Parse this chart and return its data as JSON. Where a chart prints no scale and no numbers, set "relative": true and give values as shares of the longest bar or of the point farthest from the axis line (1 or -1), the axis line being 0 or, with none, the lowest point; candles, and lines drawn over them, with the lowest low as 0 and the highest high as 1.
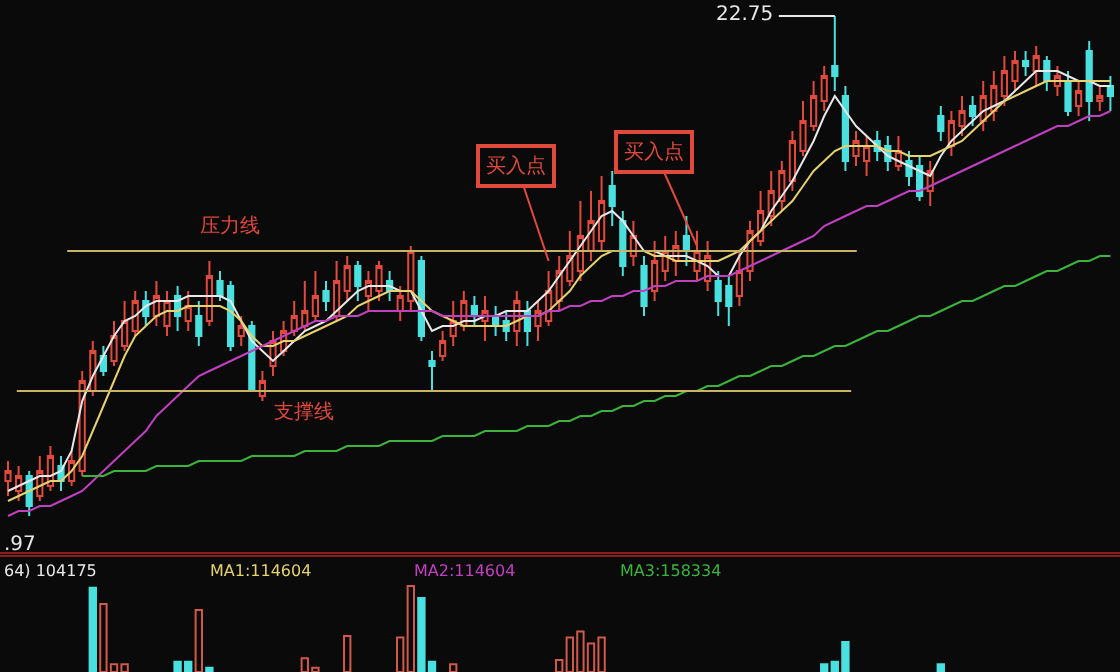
{
  "chart_data": [
    {
      "type": "candlestick",
      "relative": true,
      "categories": [
        null,
        null,
        null,
        null,
        null,
        null,
        null,
        null,
        null,
        null,
        null,
        null,
        null,
        null,
        null,
        null,
        null,
        null,
        null,
        null,
        null,
        null,
        null,
        null,
        null,
        null,
        null,
        null,
        null,
        null,
        null,
        null,
        null,
        null,
        null,
        null,
        null,
        null,
        null,
        null,
        null,
        null,
        null,
        null,
        null,
        null,
        null,
        null,
        null,
        null,
        null,
        null,
        null,
        null,
        null,
        null,
        null,
        null,
        null,
        null,
        null,
        null,
        null,
        null,
        null,
        null,
        null,
        null,
        null,
        null,
        null,
        null,
        null,
        null,
        null,
        null,
        null,
        null,
        null,
        null,
        null,
        null,
        null,
        null,
        null,
        null,
        null,
        null,
        null,
        null,
        null,
        null,
        null,
        null,
        null,
        null,
        null,
        null,
        null,
        null,
        null,
        null,
        null,
        null,
        null
      ],
      "ohlc": [
        [
          0.07,
          0.11,
          0.04,
          0.09
        ],
        [
          0.05,
          0.1,
          0.03,
          0.08
        ],
        [
          0.08,
          0.09,
          0.0,
          0.02
        ],
        [
          0.04,
          0.12,
          0.03,
          0.09
        ],
        [
          0.06,
          0.14,
          0.05,
          0.12
        ],
        [
          0.1,
          0.12,
          0.05,
          0.07
        ],
        [
          0.07,
          0.13,
          0.06,
          0.11
        ],
        [
          0.09,
          0.29,
          0.08,
          0.27
        ],
        [
          0.25,
          0.35,
          0.24,
          0.33
        ],
        [
          0.32,
          0.34,
          0.28,
          0.29
        ],
        [
          0.31,
          0.39,
          0.3,
          0.36
        ],
        [
          0.34,
          0.43,
          0.33,
          0.39
        ],
        [
          0.37,
          0.45,
          0.36,
          0.43
        ],
        [
          0.43,
          0.45,
          0.38,
          0.4
        ],
        [
          0.4,
          0.47,
          0.38,
          0.44
        ],
        [
          0.38,
          0.45,
          0.36,
          0.43
        ],
        [
          0.44,
          0.46,
          0.37,
          0.4
        ],
        [
          0.39,
          0.45,
          0.37,
          0.42
        ],
        [
          0.4,
          0.43,
          0.34,
          0.36
        ],
        [
          0.39,
          0.51,
          0.38,
          0.48
        ],
        [
          0.47,
          0.49,
          0.43,
          0.44
        ],
        [
          0.46,
          0.47,
          0.33,
          0.34
        ],
        [
          0.36,
          0.4,
          0.34,
          0.38
        ],
        [
          0.38,
          0.39,
          0.25,
          0.25
        ],
        [
          0.24,
          0.29,
          0.23,
          0.27
        ],
        [
          0.3,
          0.37,
          0.28,
          0.35
        ],
        [
          0.33,
          0.39,
          0.32,
          0.37
        ],
        [
          0.37,
          0.43,
          0.36,
          0.4
        ],
        [
          0.38,
          0.47,
          0.37,
          0.41
        ],
        [
          0.4,
          0.49,
          0.39,
          0.44
        ],
        [
          0.45,
          0.47,
          0.41,
          0.43
        ],
        [
          0.4,
          0.51,
          0.39,
          0.47
        ],
        [
          0.45,
          0.52,
          0.43,
          0.5
        ],
        [
          0.5,
          0.51,
          0.43,
          0.46
        ],
        [
          0.44,
          0.49,
          0.41,
          0.47
        ],
        [
          0.45,
          0.51,
          0.43,
          0.5
        ],
        [
          0.47,
          0.49,
          0.43,
          0.45
        ],
        [
          0.41,
          0.46,
          0.39,
          0.44
        ],
        [
          0.43,
          0.54,
          0.41,
          0.53
        ],
        [
          0.51,
          0.52,
          0.35,
          0.36
        ],
        [
          0.31,
          0.33,
          0.25,
          0.3
        ],
        [
          0.32,
          0.37,
          0.31,
          0.35
        ],
        [
          0.36,
          0.43,
          0.34,
          0.39
        ],
        [
          0.38,
          0.45,
          0.37,
          0.43
        ],
        [
          0.42,
          0.44,
          0.38,
          0.4
        ],
        [
          0.39,
          0.44,
          0.35,
          0.41
        ],
        [
          0.4,
          0.42,
          0.36,
          0.38
        ],
        [
          0.39,
          0.41,
          0.35,
          0.37
        ],
        [
          0.37,
          0.45,
          0.34,
          0.43
        ],
        [
          0.41,
          0.43,
          0.34,
          0.37
        ],
        [
          0.38,
          0.43,
          0.35,
          0.41
        ],
        [
          0.39,
          0.49,
          0.38,
          0.45
        ],
        [
          0.43,
          0.52,
          0.41,
          0.49
        ],
        [
          0.47,
          0.57,
          0.46,
          0.52
        ],
        [
          0.49,
          0.63,
          0.47,
          0.56
        ],
        [
          0.53,
          0.65,
          0.51,
          0.59
        ],
        [
          0.55,
          0.68,
          0.53,
          0.63
        ],
        [
          0.66,
          0.69,
          0.58,
          0.62
        ],
        [
          0.59,
          0.61,
          0.48,
          0.5
        ],
        [
          0.52,
          0.59,
          0.5,
          0.56
        ],
        [
          0.5,
          0.52,
          0.4,
          0.42
        ],
        [
          0.45,
          0.55,
          0.43,
          0.51
        ],
        [
          0.49,
          0.56,
          0.47,
          0.53
        ],
        [
          0.51,
          0.57,
          0.48,
          0.54
        ],
        [
          0.56,
          0.6,
          0.5,
          0.53
        ],
        [
          0.49,
          0.57,
          0.47,
          0.53
        ],
        [
          0.47,
          0.55,
          0.45,
          0.52
        ],
        [
          0.47,
          0.49,
          0.4,
          0.43
        ],
        [
          0.46,
          0.48,
          0.38,
          0.42
        ],
        [
          0.44,
          0.53,
          0.42,
          0.49
        ],
        [
          0.49,
          0.59,
          0.47,
          0.57
        ],
        [
          0.55,
          0.65,
          0.54,
          0.61
        ],
        [
          0.6,
          0.69,
          0.58,
          0.65
        ],
        [
          0.63,
          0.71,
          0.61,
          0.69
        ],
        [
          0.67,
          0.77,
          0.65,
          0.75
        ],
        [
          0.73,
          0.83,
          0.72,
          0.79
        ],
        [
          0.78,
          0.87,
          0.77,
          0.84
        ],
        [
          0.83,
          0.9,
          0.81,
          0.88
        ],
        [
          0.9,
          1.0,
          0.85,
          0.88
        ],
        [
          0.84,
          0.86,
          0.69,
          0.71
        ],
        [
          0.72,
          0.77,
          0.7,
          0.75
        ],
        [
          0.71,
          0.76,
          0.68,
          0.74
        ],
        [
          0.75,
          0.77,
          0.71,
          0.73
        ],
        [
          0.74,
          0.76,
          0.69,
          0.71
        ],
        [
          0.7,
          0.76,
          0.69,
          0.73
        ],
        [
          0.71,
          0.73,
          0.66,
          0.68
        ],
        [
          0.7,
          0.72,
          0.63,
          0.64
        ],
        [
          0.65,
          0.71,
          0.62,
          0.69
        ],
        [
          0.8,
          0.82,
          0.75,
          0.77
        ],
        [
          0.74,
          0.81,
          0.72,
          0.79
        ],
        [
          0.78,
          0.84,
          0.76,
          0.81
        ],
        [
          0.82,
          0.84,
          0.78,
          0.8
        ],
        [
          0.79,
          0.87,
          0.77,
          0.84
        ],
        [
          0.81,
          0.89,
          0.79,
          0.86
        ],
        [
          0.84,
          0.92,
          0.82,
          0.89
        ],
        [
          0.87,
          0.93,
          0.85,
          0.91
        ],
        [
          0.91,
          0.93,
          0.88,
          0.9
        ],
        [
          0.89,
          0.94,
          0.86,
          0.92
        ],
        [
          0.91,
          0.92,
          0.85,
          0.87
        ],
        [
          0.86,
          0.9,
          0.84,
          0.88
        ],
        [
          0.87,
          0.89,
          0.8,
          0.81
        ],
        [
          0.82,
          0.87,
          0.8,
          0.85
        ],
        [
          0.93,
          0.95,
          0.79,
          0.83
        ],
        [
          0.83,
          0.86,
          0.81,
          0.84
        ],
        [
          0.86,
          0.88,
          0.81,
          0.84
        ]
      ],
      "series": [
        {
          "type": "line",
          "color": "#e8e8e8",
          "values": [
            0.05,
            0.06,
            0.07,
            0.08,
            0.08,
            0.09,
            0.13,
            0.23,
            0.28,
            0.32,
            0.36,
            0.39,
            0.4,
            0.42,
            0.43,
            0.43,
            0.43,
            0.44,
            0.44,
            0.44,
            0.44,
            0.43,
            0.39,
            0.35,
            0.33,
            0.31,
            0.33,
            0.35,
            0.37,
            0.38,
            0.39,
            0.41,
            0.43,
            0.45,
            0.46,
            0.46,
            0.46,
            0.45,
            0.45,
            0.41,
            0.37,
            0.38,
            0.38,
            0.39,
            0.39,
            0.4,
            0.4,
            0.41,
            0.41,
            0.41,
            0.43,
            0.45,
            0.48,
            0.51,
            0.54,
            0.57,
            0.6,
            0.61,
            0.59,
            0.56,
            0.53,
            0.53,
            0.52,
            0.52,
            0.52,
            0.51,
            0.5,
            0.48,
            0.48,
            0.52,
            0.55,
            0.57,
            0.61,
            0.64,
            0.67,
            0.71,
            0.75,
            0.8,
            0.84,
            0.81,
            0.78,
            0.76,
            0.74,
            0.72,
            0.71,
            0.7,
            0.69,
            0.68,
            0.72,
            0.75,
            0.77,
            0.79,
            0.81,
            0.82,
            0.83,
            0.85,
            0.87,
            0.89,
            0.89,
            0.89,
            0.88,
            0.87,
            0.87,
            0.86,
            0.86
          ]
        },
        {
          "type": "line",
          "color": "#e6d26e",
          "values": [
            0.03,
            0.04,
            0.05,
            0.06,
            0.07,
            0.07,
            0.09,
            0.12,
            0.17,
            0.22,
            0.27,
            0.32,
            0.36,
            0.38,
            0.4,
            0.41,
            0.41,
            0.42,
            0.42,
            0.42,
            0.42,
            0.41,
            0.39,
            0.36,
            0.34,
            0.34,
            0.35,
            0.35,
            0.36,
            0.37,
            0.38,
            0.39,
            0.4,
            0.42,
            0.43,
            0.44,
            0.45,
            0.45,
            0.45,
            0.43,
            0.41,
            0.4,
            0.39,
            0.38,
            0.38,
            0.38,
            0.38,
            0.38,
            0.39,
            0.4,
            0.4,
            0.41,
            0.43,
            0.45,
            0.48,
            0.5,
            0.52,
            0.53,
            0.53,
            0.53,
            0.53,
            0.52,
            0.52,
            0.51,
            0.51,
            0.51,
            0.51,
            0.51,
            0.52,
            0.53,
            0.55,
            0.57,
            0.59,
            0.61,
            0.63,
            0.66,
            0.69,
            0.71,
            0.73,
            0.74,
            0.74,
            0.74,
            0.74,
            0.73,
            0.73,
            0.72,
            0.72,
            0.72,
            0.73,
            0.74,
            0.75,
            0.77,
            0.79,
            0.81,
            0.83,
            0.84,
            0.85,
            0.86,
            0.87,
            0.87,
            0.87,
            0.87,
            0.87,
            0.87,
            0.87
          ]
        },
        {
          "type": "line",
          "color": "#c040c0",
          "values": [
            0.0,
            0.01,
            0.01,
            0.02,
            0.02,
            0.03,
            0.04,
            0.05,
            0.07,
            0.09,
            0.11,
            0.13,
            0.15,
            0.17,
            0.2,
            0.22,
            0.24,
            0.26,
            0.28,
            0.29,
            0.3,
            0.31,
            0.32,
            0.33,
            0.34,
            0.35,
            0.36,
            0.37,
            0.38,
            0.39,
            0.39,
            0.4,
            0.4,
            0.4,
            0.41,
            0.41,
            0.41,
            0.41,
            0.41,
            0.41,
            0.41,
            0.4,
            0.4,
            0.4,
            0.4,
            0.4,
            0.4,
            0.4,
            0.4,
            0.4,
            0.4,
            0.41,
            0.41,
            0.42,
            0.42,
            0.43,
            0.43,
            0.44,
            0.44,
            0.45,
            0.45,
            0.46,
            0.46,
            0.47,
            0.47,
            0.47,
            0.48,
            0.48,
            0.48,
            0.49,
            0.5,
            0.51,
            0.52,
            0.53,
            0.54,
            0.55,
            0.56,
            0.58,
            0.59,
            0.6,
            0.61,
            0.62,
            0.62,
            0.63,
            0.64,
            0.65,
            0.65,
            0.66,
            0.67,
            0.68,
            0.69,
            0.7,
            0.71,
            0.72,
            0.73,
            0.74,
            0.75,
            0.76,
            0.77,
            0.78,
            0.78,
            0.79,
            0.8,
            0.8,
            0.81
          ]
        },
        {
          "type": "line",
          "color": "#3cb43c",
          "values": [
            null,
            null,
            null,
            null,
            null,
            null,
            null,
            0.08,
            0.08,
            0.08,
            0.09,
            0.09,
            0.09,
            0.09,
            0.1,
            0.1,
            0.1,
            0.1,
            0.11,
            0.11,
            0.11,
            0.11,
            0.11,
            0.12,
            0.12,
            0.12,
            0.12,
            0.12,
            0.13,
            0.13,
            0.13,
            0.13,
            0.14,
            0.14,
            0.14,
            0.14,
            0.15,
            0.15,
            0.15,
            0.15,
            0.15,
            0.16,
            0.16,
            0.16,
            0.16,
            0.17,
            0.17,
            0.17,
            0.17,
            0.18,
            0.18,
            0.18,
            0.19,
            0.19,
            0.2,
            0.2,
            0.21,
            0.21,
            0.22,
            0.22,
            0.23,
            0.23,
            0.24,
            0.24,
            0.25,
            0.25,
            0.26,
            0.26,
            0.27,
            0.28,
            0.28,
            0.29,
            0.3,
            0.3,
            0.31,
            0.32,
            0.32,
            0.33,
            0.34,
            0.34,
            0.35,
            0.36,
            0.37,
            0.37,
            0.38,
            0.39,
            0.4,
            0.4,
            0.41,
            0.42,
            0.43,
            0.43,
            0.44,
            0.45,
            0.46,
            0.46,
            0.47,
            0.48,
            0.49,
            0.49,
            0.5,
            0.51,
            0.51,
            0.52,
            0.52
          ]
        }
      ],
      "ref_lines": [
        {
          "axis": "y",
          "value": 0.53,
          "label": "压力线",
          "color": "#c8b464"
        },
        {
          "axis": "y",
          "value": 0.25,
          "label": "支撑线",
          "color": "#c8b464"
        }
      ],
      "annotations": [
        "22.75",
        ".97",
        "买入点",
        "买入点"
      ]
    },
    {
      "type": "bar",
      "relative": true,
      "categories": [
        null,
        null,
        null,
        null,
        null,
        null,
        null,
        null,
        null,
        null,
        null,
        null,
        null,
        null,
        null,
        null,
        null,
        null,
        null,
        null,
        null,
        null,
        null,
        null,
        null,
        null,
        null,
        null,
        null,
        null,
        null,
        null,
        null,
        null,
        null,
        null,
        null,
        null,
        null,
        null,
        null,
        null,
        null,
        null,
        null,
        null,
        null,
        null,
        null,
        null,
        null,
        null,
        null,
        null,
        null,
        null,
        null,
        null,
        null,
        null,
        null,
        null,
        null,
        null,
        null,
        null,
        null,
        null,
        null,
        null,
        null,
        null,
        null,
        null,
        null,
        null,
        null,
        null,
        null,
        null,
        null,
        null,
        null,
        null,
        null,
        null,
        null,
        null,
        null,
        null,
        null,
        null,
        null,
        null,
        null,
        null,
        null,
        null,
        null,
        null,
        null,
        null,
        null,
        null,
        null
      ],
      "values": [
        null,
        null,
        null,
        null,
        null,
        null,
        null,
        null,
        0.98,
        0.79,
        0.09,
        0.09,
        null,
        null,
        null,
        null,
        0.12,
        0.12,
        0.72,
        0.05,
        null,
        null,
        null,
        null,
        null,
        null,
        null,
        null,
        0.16,
        0.05,
        null,
        null,
        0.42,
        null,
        null,
        null,
        null,
        0.4,
        1.0,
        0.86,
        0.12,
        null,
        0.09,
        null,
        null,
        null,
        null,
        null,
        null,
        null,
        null,
        null,
        0.14,
        0.4,
        0.47,
        0.33,
        0.4,
        null,
        null,
        null,
        null,
        null,
        null,
        null,
        null,
        null,
        null,
        null,
        null,
        null,
        null,
        null,
        null,
        null,
        null,
        null,
        null,
        0.09,
        0.12,
        0.35,
        null,
        null,
        null,
        null,
        null,
        null,
        null,
        null,
        0.09,
        null,
        null,
        null,
        null,
        null,
        null,
        null,
        null,
        null,
        null,
        null,
        null,
        null,
        null,
        null,
        null
      ],
      "colors": [
        "#d05a4a",
        "#d05a4a",
        "#d05a4a",
        "#d05a4a",
        "#d05a4a",
        "#d05a4a",
        "#d05a4a",
        "#d05a4a",
        "#4ae0e0",
        "#d05a4a",
        "#d05a4a",
        "#d05a4a",
        "#d05a4a",
        "#d05a4a",
        "#d05a4a",
        "#d05a4a",
        "#4ae0e0",
        "#4ae0e0",
        "#d05a4a",
        "#4ae0e0",
        "#d05a4a",
        "#d05a4a",
        "#d05a4a",
        "#d05a4a",
        "#d05a4a",
        "#d05a4a",
        "#d05a4a",
        "#d05a4a",
        "#d05a4a",
        "#d05a4a",
        "#d05a4a",
        "#d05a4a",
        "#d05a4a",
        "#d05a4a",
        "#d05a4a",
        "#d05a4a",
        "#d05a4a",
        "#d05a4a",
        "#d05a4a",
        "#4ae0e0",
        "#4ae0e0",
        "#d05a4a",
        "#d05a4a",
        "#d05a4a",
        "#d05a4a",
        "#d05a4a",
        "#d05a4a",
        "#d05a4a",
        "#d05a4a",
        "#d05a4a",
        "#d05a4a",
        "#d05a4a",
        "#d05a4a",
        "#d05a4a",
        "#d05a4a",
        "#d05a4a",
        "#d05a4a",
        "#d05a4a",
        "#d05a4a",
        "#d05a4a",
        "#d05a4a",
        "#d05a4a",
        "#d05a4a",
        "#d05a4a",
        "#d05a4a",
        "#d05a4a",
        "#d05a4a",
        "#d05a4a",
        "#d05a4a",
        "#d05a4a",
        "#d05a4a",
        "#d05a4a",
        "#d05a4a",
        "#d05a4a",
        "#d05a4a",
        "#d05a4a",
        "#d05a4a",
        "#4ae0e0",
        "#4ae0e0",
        "#4ae0e0",
        "#d05a4a",
        "#d05a4a",
        "#d05a4a",
        "#d05a4a",
        "#d05a4a",
        "#d05a4a",
        "#d05a4a",
        "#d05a4a",
        "#4ae0e0",
        "#d05a4a",
        "#d05a4a",
        "#d05a4a",
        "#d05a4a",
        "#d05a4a",
        "#d05a4a",
        "#d05a4a",
        "#d05a4a",
        "#d05a4a",
        "#d05a4a",
        "#d05a4a",
        "#d05a4a",
        "#d05a4a",
        "#d05a4a",
        "#d05a4a",
        "#d05a4a"
      ],
      "annotations": [
        "64) 104175",
        "MA1:114604",
        "MA2:114604",
        "MA3:158334"
      ]
    }
  ]
}
